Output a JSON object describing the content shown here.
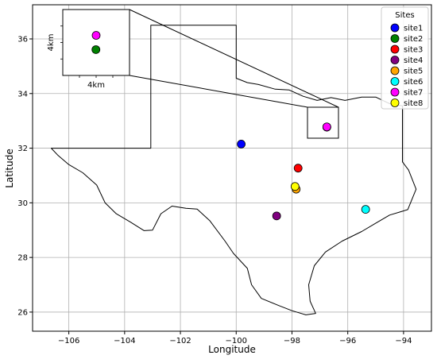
{
  "chart_data": {
    "type": "scatter",
    "title": "",
    "xlabel": "Longitude",
    "ylabel": "Latitude",
    "xlim": [
      -107.3,
      -93.0
    ],
    "ylim": [
      25.3,
      37.25
    ],
    "x_ticks": [
      -106,
      -104,
      -102,
      -100,
      -98,
      -96,
      -94
    ],
    "y_ticks": [
      26,
      28,
      30,
      32,
      34,
      36
    ],
    "x_tick_labels": [
      "−106",
      "−104",
      "−102",
      "−100",
      "−98",
      "−96",
      "−94"
    ],
    "y_tick_labels": [
      "26",
      "28",
      "30",
      "32",
      "34",
      "36"
    ],
    "grid": true,
    "legend": {
      "title": "Sites",
      "placement": "top-right"
    },
    "series": [
      {
        "name": "site1",
        "x": -99.82,
        "y": 32.15,
        "color": "#0000ff"
      },
      {
        "name": "site2",
        "x": -96.75,
        "y": 32.77,
        "color": "#008000"
      },
      {
        "name": "site3",
        "x": -97.78,
        "y": 31.27,
        "color": "#ff0000"
      },
      {
        "name": "site4",
        "x": -98.55,
        "y": 29.52,
        "color": "#800080"
      },
      {
        "name": "site5",
        "x": -97.85,
        "y": 30.5,
        "color": "#ffa500"
      },
      {
        "name": "site6",
        "x": -95.36,
        "y": 29.76,
        "color": "#00ffff"
      },
      {
        "name": "site7",
        "x": -96.75,
        "y": 32.78,
        "color": "#ff00ff"
      },
      {
        "name": "site8",
        "x": -97.89,
        "y": 30.6,
        "color": "#ffff00"
      }
    ],
    "inset": {
      "x_label": "4km",
      "y_label": "4km",
      "points": [
        {
          "name": "site7",
          "color": "#ff00ff",
          "dx": 0.0,
          "dy": 0.65
        },
        {
          "name": "site2",
          "color": "#008000",
          "dx": -0.02,
          "dy": -0.65
        }
      ]
    },
    "boundary": [
      [
        -106.63,
        32.0
      ],
      [
        -103.06,
        32.0
      ],
      [
        -103.06,
        36.5
      ],
      [
        -100.0,
        36.5
      ],
      [
        -100.0,
        34.56
      ],
      [
        -99.6,
        34.4
      ],
      [
        -99.2,
        34.33
      ],
      [
        -98.6,
        34.16
      ],
      [
        -98.1,
        34.13
      ],
      [
        -97.6,
        33.9
      ],
      [
        -97.1,
        33.75
      ],
      [
        -96.6,
        33.85
      ],
      [
        -96.1,
        33.75
      ],
      [
        -95.5,
        33.87
      ],
      [
        -95.0,
        33.87
      ],
      [
        -94.5,
        33.63
      ],
      [
        -94.04,
        33.55
      ],
      [
        -94.04,
        31.5
      ],
      [
        -93.82,
        31.2
      ],
      [
        -93.55,
        30.5
      ],
      [
        -93.85,
        29.75
      ],
      [
        -94.5,
        29.55
      ],
      [
        -95.0,
        29.25
      ],
      [
        -95.5,
        28.95
      ],
      [
        -96.2,
        28.6
      ],
      [
        -96.8,
        28.2
      ],
      [
        -97.2,
        27.7
      ],
      [
        -97.4,
        27.0
      ],
      [
        -97.35,
        26.4
      ],
      [
        -97.15,
        25.95
      ],
      [
        -97.5,
        25.9
      ],
      [
        -98.0,
        26.05
      ],
      [
        -98.5,
        26.25
      ],
      [
        -99.1,
        26.5
      ],
      [
        -99.45,
        27.0
      ],
      [
        -99.6,
        27.6
      ],
      [
        -100.1,
        28.15
      ],
      [
        -100.4,
        28.6
      ],
      [
        -100.95,
        29.35
      ],
      [
        -101.4,
        29.77
      ],
      [
        -101.8,
        29.8
      ],
      [
        -102.3,
        29.88
      ],
      [
        -102.7,
        29.6
      ],
      [
        -103.0,
        29.0
      ],
      [
        -103.3,
        28.98
      ],
      [
        -103.8,
        29.3
      ],
      [
        -104.3,
        29.6
      ],
      [
        -104.7,
        30.0
      ],
      [
        -105.0,
        30.65
      ],
      [
        -105.5,
        31.1
      ],
      [
        -106.0,
        31.4
      ],
      [
        -106.4,
        31.75
      ],
      [
        -106.63,
        32.0
      ]
    ]
  }
}
